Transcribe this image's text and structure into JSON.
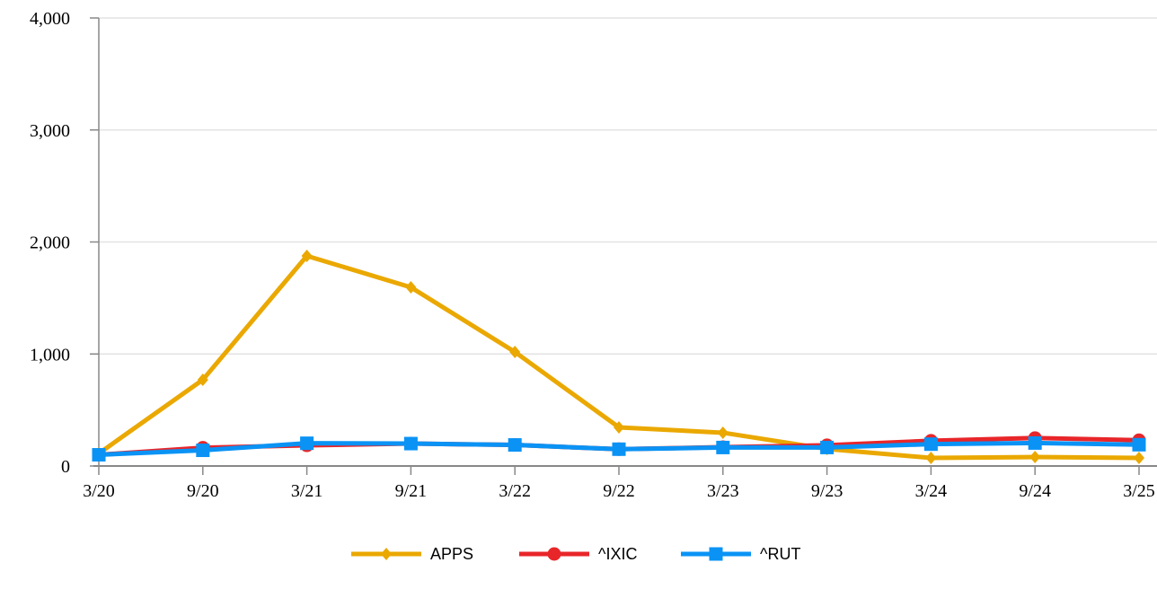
{
  "chart_data": {
    "type": "line",
    "title": "",
    "xlabel": "",
    "ylabel": "",
    "categories": [
      "3/20",
      "9/20",
      "3/21",
      "9/21",
      "3/22",
      "9/22",
      "3/23",
      "9/23",
      "3/24",
      "9/24",
      "3/25"
    ],
    "ylim": [
      0,
      4000
    ],
    "yticks": [
      0,
      1000,
      2000,
      3000,
      4000
    ],
    "ytick_labels": [
      "0",
      "1,000",
      "2,000",
      "3,000",
      "4,000"
    ],
    "grid": true,
    "legend_position": "bottom",
    "series": [
      {
        "name": "APPS",
        "color": "#EAA800",
        "marker": "diamond",
        "values": [
          112,
          770,
          1876,
          1595,
          1018,
          345,
          297,
          152,
          72,
          80,
          72
        ]
      },
      {
        "name": "^IXIC",
        "color": "#E8262A",
        "marker": "circle",
        "values": [
          100,
          163,
          184,
          200,
          188,
          150,
          168,
          185,
          225,
          250,
          230
        ]
      },
      {
        "name": "^RUT",
        "color": "#0A93F5",
        "marker": "square",
        "values": [
          100,
          140,
          203,
          200,
          188,
          150,
          165,
          165,
          195,
          205,
          190
        ]
      }
    ]
  }
}
